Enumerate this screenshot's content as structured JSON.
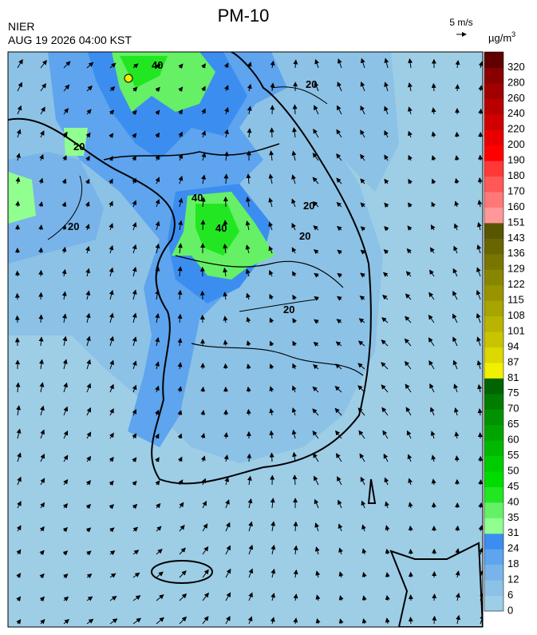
{
  "header": {
    "title": "PM-10",
    "agency": "NIER",
    "timestamp": "AUG 19 2026 04:00 KST",
    "wind_reference": "5 m/s",
    "unit": "µg/m",
    "unit_sup": "3"
  },
  "colorbar": {
    "labels": [
      0,
      6,
      12,
      18,
      24,
      31,
      35,
      40,
      45,
      50,
      55,
      60,
      65,
      70,
      75,
      81,
      87,
      94,
      101,
      108,
      115,
      122,
      129,
      136,
      143,
      151,
      160,
      170,
      180,
      190,
      200,
      220,
      240,
      260,
      280,
      320
    ],
    "colors": [
      "#9ecde6",
      "#8cc2e6",
      "#78b4ea",
      "#5ea4ee",
      "#3b8ef0",
      "#90ff90",
      "#66f066",
      "#22e622",
      "#00dc00",
      "#00cc00",
      "#00b800",
      "#00a400",
      "#009200",
      "#007c00",
      "#006400",
      "#f0f000",
      "#dcd800",
      "#c8c400",
      "#b8b400",
      "#a8a400",
      "#989400",
      "#888600",
      "#787600",
      "#686600",
      "#585600",
      "#ff9898",
      "#ff7878",
      "#ff5858",
      "#ff3838",
      "#ff0000",
      "#e80000",
      "#d00000",
      "#b80000",
      "#a00000",
      "#880000",
      "#600000"
    ]
  },
  "map": {
    "contour_labels": [
      "40",
      "20",
      "40",
      "20",
      "40",
      "20",
      "20",
      "20",
      "20"
    ]
  }
}
